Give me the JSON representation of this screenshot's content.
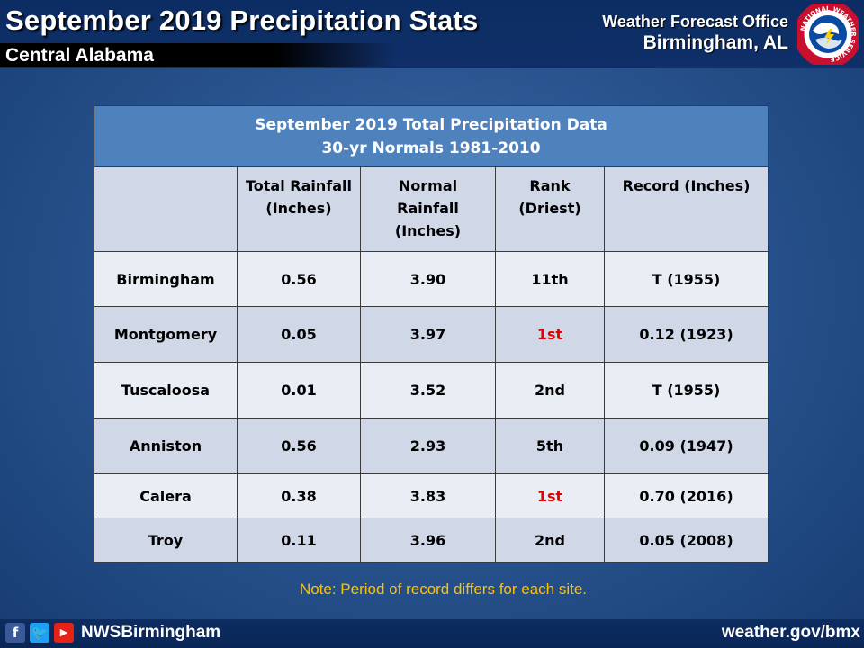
{
  "header": {
    "title": "September 2019 Precipitation Stats",
    "subtitle": "Central Alabama",
    "office_line1": "Weather Forecast Office",
    "office_line2": "Birmingham, AL",
    "logo_text": "NATIONAL WEATHER SERVICE"
  },
  "table": {
    "caption_line1": "September 2019 Total Precipitation Data",
    "caption_line2": "30-yr Normals 1981-2010",
    "columns": [
      {
        "line1": "",
        "line2": "",
        "line3": ""
      },
      {
        "line1": "Total Rainfall",
        "line2": "(Inches)",
        "line3": ""
      },
      {
        "line1": "Normal",
        "line2": "Rainfall",
        "line3": "(Inches)"
      },
      {
        "line1": "Rank",
        "line2": "(Driest)",
        "line3": ""
      },
      {
        "line1": "Record (Inches)",
        "line2": "",
        "line3": ""
      }
    ],
    "rows": [
      {
        "site": "Birmingham",
        "total": "0.56",
        "normal": "3.90",
        "rank": "11th",
        "record": "T (1955)"
      },
      {
        "site": "Montgomery",
        "total": "0.05",
        "normal": "3.97",
        "rank": "1st",
        "record": "0.12 (1923)"
      },
      {
        "site": "Tuscaloosa",
        "total": "0.01",
        "normal": "3.52",
        "rank": "2nd",
        "record": "T (1955)"
      },
      {
        "site": "Anniston",
        "total": "0.56",
        "normal": "2.93",
        "rank": "5th",
        "record": "0.09 (1947)"
      },
      {
        "site": "Calera",
        "total": "0.38",
        "normal": "3.83",
        "rank": "1st",
        "record": "0.70 (2016)"
      },
      {
        "site": "Troy",
        "total": "0.11",
        "normal": "3.96",
        "rank": "2nd",
        "record": "0.05 (2008)"
      }
    ]
  },
  "note": "Note: Period of record differs for each site.",
  "footer": {
    "social_icons": [
      "facebook-icon",
      "twitter-icon",
      "youtube-icon"
    ],
    "handle": "NWSBirmingham",
    "website": "weather.gov/bmx"
  },
  "colors": {
    "header_bg": "#0c2d63",
    "table_caption": "#4f81bd",
    "row_light": "#e9edf4",
    "row_dark": "#d0d8e8",
    "rank_highlight": "#e00000",
    "note": "#ffc000"
  }
}
